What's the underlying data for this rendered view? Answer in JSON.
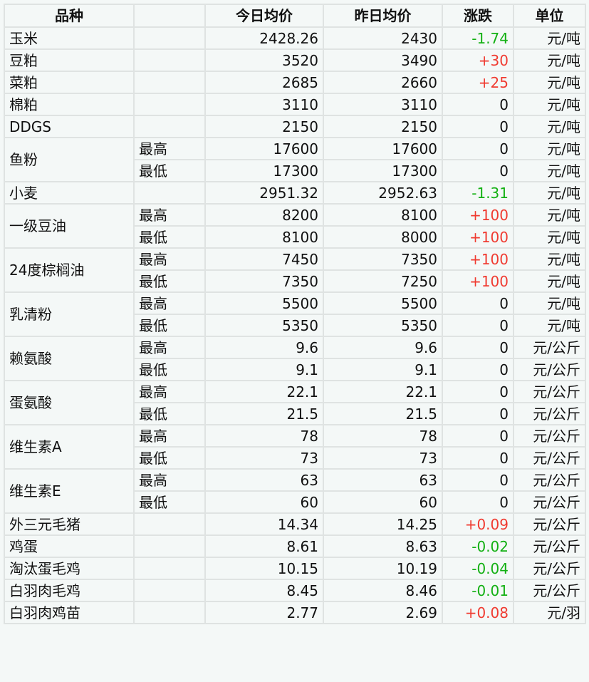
{
  "headers": [
    "品种",
    "",
    "今日均价",
    "昨日均价",
    "涨跌",
    "单位"
  ],
  "colors": {
    "up": "#f03a30",
    "down": "#13b013"
  },
  "rows": [
    {
      "name": "玉米",
      "sub": "",
      "today": "2428.26",
      "yesterday": "2430",
      "change": "-1.74",
      "unit": "元/吨",
      "span": 1
    },
    {
      "name": "豆粕",
      "sub": "",
      "today": "3520",
      "yesterday": "3490",
      "change": "+30",
      "unit": "元/吨",
      "span": 1
    },
    {
      "name": "菜粕",
      "sub": "",
      "today": "2685",
      "yesterday": "2660",
      "change": "+25",
      "unit": "元/吨",
      "span": 1
    },
    {
      "name": "棉粕",
      "sub": "",
      "today": "3110",
      "yesterday": "3110",
      "change": "0",
      "unit": "元/吨",
      "span": 1
    },
    {
      "name": "DDGS",
      "sub": "",
      "today": "2150",
      "yesterday": "2150",
      "change": "0",
      "unit": "元/吨",
      "span": 1
    },
    {
      "name": "鱼粉",
      "sub": "最高",
      "today": "17600",
      "yesterday": "17600",
      "change": "0",
      "unit": "元/吨",
      "span": 2
    },
    {
      "name": "",
      "sub": "最低",
      "today": "17300",
      "yesterday": "17300",
      "change": "0",
      "unit": "元/吨",
      "span": 0
    },
    {
      "name": "小麦",
      "sub": "",
      "today": "2951.32",
      "yesterday": "2952.63",
      "change": "-1.31",
      "unit": "元/吨",
      "span": 1
    },
    {
      "name": "一级豆油",
      "sub": "最高",
      "today": "8200",
      "yesterday": "8100",
      "change": "+100",
      "unit": "元/吨",
      "span": 2
    },
    {
      "name": "",
      "sub": "最低",
      "today": "8100",
      "yesterday": "8000",
      "change": "+100",
      "unit": "元/吨",
      "span": 0
    },
    {
      "name": "24度棕榈油",
      "sub": "最高",
      "today": "7450",
      "yesterday": "7350",
      "change": "+100",
      "unit": "元/吨",
      "span": 2
    },
    {
      "name": "",
      "sub": "最低",
      "today": "7350",
      "yesterday": "7250",
      "change": "+100",
      "unit": "元/吨",
      "span": 0
    },
    {
      "name": "乳清粉",
      "sub": "最高",
      "today": "5500",
      "yesterday": "5500",
      "change": "0",
      "unit": "元/吨",
      "span": 2
    },
    {
      "name": "",
      "sub": "最低",
      "today": "5350",
      "yesterday": "5350",
      "change": "0",
      "unit": "元/吨",
      "span": 0
    },
    {
      "name": "赖氨酸",
      "sub": "最高",
      "today": "9.6",
      "yesterday": "9.6",
      "change": "0",
      "unit": "元/公斤",
      "span": 2
    },
    {
      "name": "",
      "sub": "最低",
      "today": "9.1",
      "yesterday": "9.1",
      "change": "0",
      "unit": "元/公斤",
      "span": 0
    },
    {
      "name": "蛋氨酸",
      "sub": "最高",
      "today": "22.1",
      "yesterday": "22.1",
      "change": "0",
      "unit": "元/公斤",
      "span": 2
    },
    {
      "name": "",
      "sub": "最低",
      "today": "21.5",
      "yesterday": "21.5",
      "change": "0",
      "unit": "元/公斤",
      "span": 0
    },
    {
      "name": "维生素A",
      "sub": "最高",
      "today": "78",
      "yesterday": "78",
      "change": "0",
      "unit": "元/公斤",
      "span": 2
    },
    {
      "name": "",
      "sub": "最低",
      "today": "73",
      "yesterday": "73",
      "change": "0",
      "unit": "元/公斤",
      "span": 0
    },
    {
      "name": "维生素E",
      "sub": "最高",
      "today": "63",
      "yesterday": "63",
      "change": "0",
      "unit": "元/公斤",
      "span": 2
    },
    {
      "name": "",
      "sub": "最低",
      "today": "60",
      "yesterday": "60",
      "change": "0",
      "unit": "元/公斤",
      "span": 0
    },
    {
      "name": "外三元毛猪",
      "sub": "",
      "today": "14.34",
      "yesterday": "14.25",
      "change": "+0.09",
      "unit": "元/公斤",
      "span": 1
    },
    {
      "name": "鸡蛋",
      "sub": "",
      "today": "8.61",
      "yesterday": "8.63",
      "change": "-0.02",
      "unit": "元/公斤",
      "span": 1
    },
    {
      "name": "淘汰蛋毛鸡",
      "sub": "",
      "today": "10.15",
      "yesterday": "10.19",
      "change": "-0.04",
      "unit": "元/公斤",
      "span": 1
    },
    {
      "name": "白羽肉毛鸡",
      "sub": "",
      "today": "8.45",
      "yesterday": "8.46",
      "change": "-0.01",
      "unit": "元/公斤",
      "span": 1
    },
    {
      "name": "白羽肉鸡苗",
      "sub": "",
      "today": "2.77",
      "yesterday": "2.69",
      "change": "+0.08",
      "unit": "元/羽",
      "span": 1
    }
  ]
}
